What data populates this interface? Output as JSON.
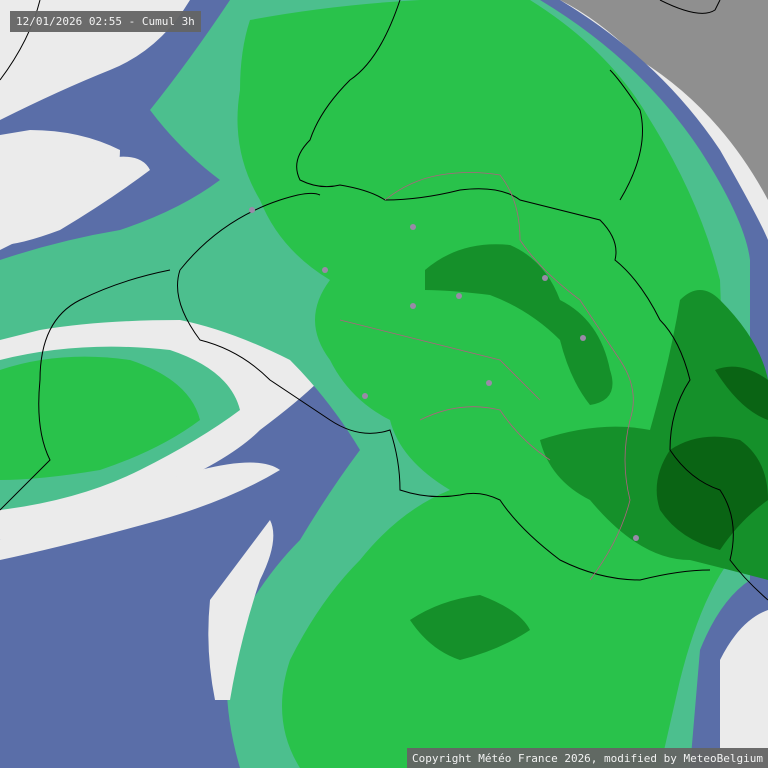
{
  "header": {
    "timestamp_label": "12/01/2026 02:55 - Cumul 3h"
  },
  "footer": {
    "copyright": "Copyright Météo France 2026, modified by MeteoBelgium"
  },
  "legend_colors": {
    "no_data": "#8f8f8f",
    "none": "#ebebeb",
    "very_light": "#5a6ea8",
    "light": "#4cbf8e",
    "moderate": "#29c24b",
    "heavy": "#15902a",
    "very_heavy": "#0a6414"
  }
}
